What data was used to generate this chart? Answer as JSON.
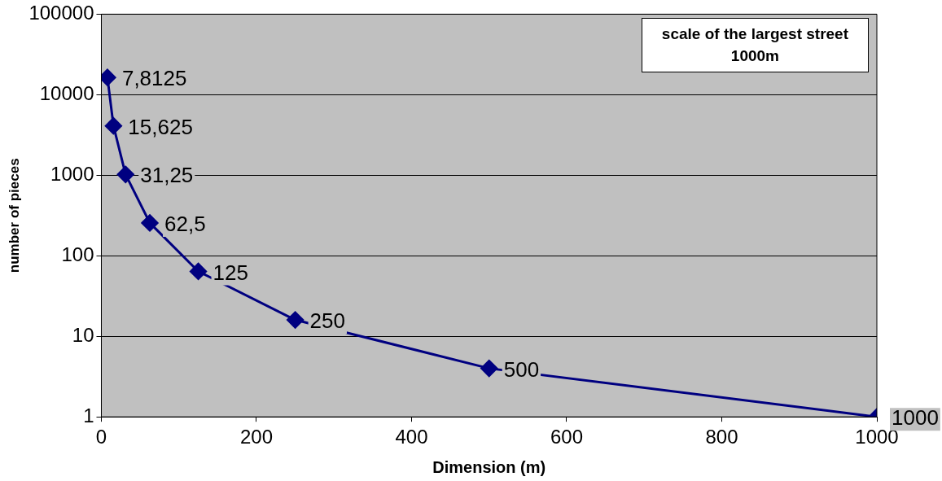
{
  "chart_data": {
    "type": "line",
    "xlabel": "Dimension (m)",
    "ylabel": "number of pieces",
    "annotations": [
      "scale of the largest street",
      "1000m",
      {
        "text": "7,8125",
        "x": 7.8125,
        "y": 16384
      },
      {
        "text": "15,625",
        "x": 15.625,
        "y": 4096
      },
      {
        "text": "31,25",
        "x": 31.25,
        "y": 1024
      },
      {
        "text": "62,5",
        "x": 62.5,
        "y": 256
      },
      {
        "text": "125",
        "x": 125,
        "y": 64
      },
      {
        "text": "250",
        "x": 250,
        "y": 16
      },
      {
        "text": "500",
        "x": 500,
        "y": 4
      },
      {
        "text": "1000",
        "x": 1000,
        "y": 1
      }
    ],
    "x": [
      7.8125,
      15.625,
      31.25,
      62.5,
      125,
      250,
      500,
      1000
    ],
    "series": [
      {
        "color": "#000080",
        "values": [
          16384,
          4096,
          1024,
          256,
          64,
          16,
          4,
          1
        ]
      }
    ],
    "xlim": [
      0,
      1000
    ],
    "xticks": [
      0,
      200,
      400,
      600,
      800,
      1000
    ],
    "ylim": [
      1,
      100000
    ],
    "yticks": [
      1,
      10,
      100,
      1000,
      10000,
      100000
    ],
    "log": "y",
    "grid": "y",
    "legend": false,
    "marker": "diamond",
    "line_style": "solid"
  }
}
